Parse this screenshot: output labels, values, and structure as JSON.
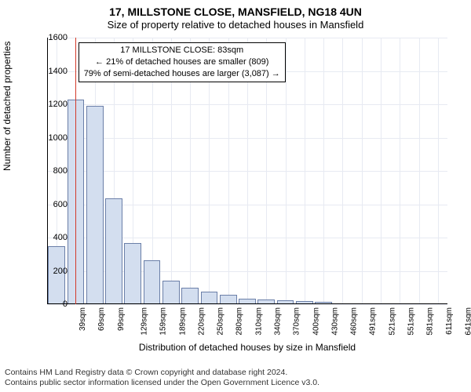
{
  "title": "17, MILLSTONE CLOSE, MANSFIELD, NG18 4UN",
  "subtitle": "Size of property relative to detached houses in Mansfield",
  "ylabel": "Number of detached properties",
  "xlabel": "Distribution of detached houses by size in Mansfield",
  "footer_line1": "Contains HM Land Registry data © Crown copyright and database right 2024.",
  "footer_line2": "Contains public sector information licensed under the Open Government Licence v3.0.",
  "annotation": {
    "line1": "17 MILLSTONE CLOSE: 83sqm",
    "line2": "← 21% of detached houses are smaller (809)",
    "line3": "79% of semi-detached houses are larger (3,087) →"
  },
  "chart": {
    "type": "bar",
    "ylim": [
      0,
      1600
    ],
    "ytick_step": 200,
    "xtick_labels": [
      "39sqm",
      "69sqm",
      "99sqm",
      "129sqm",
      "159sqm",
      "189sqm",
      "220sqm",
      "250sqm",
      "280sqm",
      "310sqm",
      "340sqm",
      "370sqm",
      "400sqm",
      "430sqm",
      "460sqm",
      "491sqm",
      "521sqm",
      "551sqm",
      "581sqm",
      "611sqm",
      "641sqm"
    ],
    "values": [
      350,
      1230,
      1190,
      635,
      365,
      265,
      140,
      100,
      75,
      55,
      35,
      28,
      22,
      18,
      15,
      0,
      0,
      0,
      0,
      0,
      0
    ],
    "bar_fill": "#d3deef",
    "bar_stroke": "#6b7fa8",
    "background": "#ffffff",
    "grid_color": "#e7eaf2",
    "marker_color": "#d33a2a",
    "marker_bin_index": 1,
    "marker_fraction_in_bin": 0.47,
    "axis_fontsize": 11,
    "label_fontsize": 12,
    "title_fontsize": 14
  }
}
